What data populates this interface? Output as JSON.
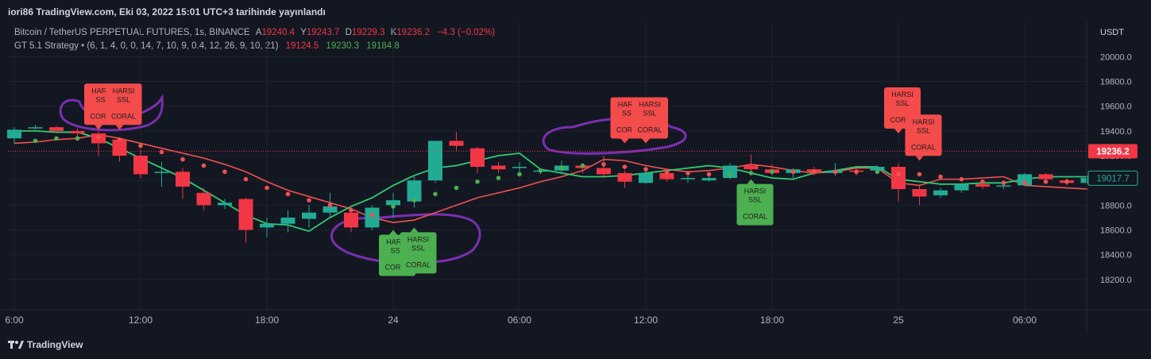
{
  "header": {
    "publisher_line": "iori86 TradingView.com, Eki 03, 2022 15:01 UTC+3 tarihinde yayınlandı"
  },
  "symbol_legend": {
    "name": "Bitcoin / TetherUS PERPETUAL FUTURES, 1s, BINANCE",
    "o_label": "A",
    "o": "19240.4",
    "h_label": "Y",
    "h": "19243.7",
    "l_label": "D",
    "l": "19229.3",
    "c_label": "K",
    "c": "19236.2",
    "change": "−4.3 (−0.02%)"
  },
  "indicator_legend": {
    "name": "GT 5.1 Strategy",
    "params": "(6, 1, 4, 0, 0, 14, 7, 10, 9, 0.4, 12, 26, 9, 10, 21)",
    "v1": "19124.5",
    "v2": "19230.3",
    "v3": "19184.8"
  },
  "footer": {
    "brand": "TradingView",
    "logo_icon": "tradingview-logo-icon"
  },
  "colors": {
    "up": "#22ab94",
    "down": "#f23645",
    "bg": "#131722",
    "grid": "#1e222d",
    "fast_line": "#2ecc71",
    "slow_line": "#f0524f",
    "annotation": "#7b2fb0",
    "sell_label": "#f44b4b",
    "buy_label": "#4caf50"
  },
  "chart_data": {
    "type": "candlestick",
    "currency": "USDT",
    "ylim": [
      18000,
      20150
    ],
    "y_ticks": [
      18200,
      18400,
      18600,
      18800,
      19000,
      19200,
      19400,
      19600,
      19800,
      20000
    ],
    "y_tick_labels": [
      "18200.0",
      "18400.0",
      "18600.0",
      "18800.0",
      "19000.0",
      "19200.0",
      "19400.0",
      "19600.0",
      "19800.0",
      "20000.0"
    ],
    "x_ticks": [
      {
        "i": 0,
        "label": "6:00"
      },
      {
        "i": 6,
        "label": "12:00"
      },
      {
        "i": 12,
        "label": "18:00"
      },
      {
        "i": 18,
        "label": "24"
      },
      {
        "i": 24,
        "label": "06:00"
      },
      {
        "i": 30,
        "label": "12:00"
      },
      {
        "i": 36,
        "label": "18:00"
      },
      {
        "i": 42,
        "label": "25"
      },
      {
        "i": 48,
        "label": "06:00"
      }
    ],
    "last_price": 19236.2,
    "last_price_label": "19236.2",
    "indicator_value": 19017.7,
    "indicator_value_label": "19017.7",
    "candles": [
      [
        19340,
        19410,
        19300,
        19430
      ],
      [
        19420,
        19430,
        19410,
        19450
      ],
      [
        19430,
        19400,
        19380,
        19440
      ],
      [
        19400,
        19380,
        19320,
        19420
      ],
      [
        19380,
        19300,
        19200,
        19400
      ],
      [
        19330,
        19200,
        19150,
        19350
      ],
      [
        19200,
        19050,
        19020,
        19250
      ],
      [
        19060,
        19070,
        18950,
        19150
      ],
      [
        19070,
        18950,
        18850,
        19100
      ],
      [
        18900,
        18800,
        18760,
        18940
      ],
      [
        18800,
        18820,
        18770,
        18850
      ],
      [
        18850,
        18600,
        18500,
        18860
      ],
      [
        18620,
        18650,
        18540,
        18700
      ],
      [
        18650,
        18700,
        18580,
        18760
      ],
      [
        18690,
        18740,
        18620,
        18800
      ],
      [
        18740,
        18790,
        18700,
        18900
      ],
      [
        18740,
        18620,
        18580,
        18800
      ],
      [
        18620,
        18780,
        18600,
        18800
      ],
      [
        18800,
        18840,
        18700,
        18900
      ],
      [
        18830,
        19000,
        18780,
        19030
      ],
      [
        19000,
        19320,
        18980,
        19320
      ],
      [
        19320,
        19280,
        19240,
        19390
      ],
      [
        19260,
        19110,
        19060,
        19270
      ],
      [
        19120,
        19090,
        19060,
        19150
      ],
      [
        19100,
        19110,
        19060,
        19150
      ],
      [
        19080,
        19080,
        19050,
        19090
      ],
      [
        19080,
        19120,
        19050,
        19160
      ],
      [
        19120,
        19100,
        19060,
        19140
      ],
      [
        19100,
        19050,
        19020,
        19200
      ],
      [
        19060,
        18990,
        18940,
        19080
      ],
      [
        18980,
        19060,
        18970,
        19080
      ],
      [
        19060,
        19010,
        18990,
        19080
      ],
      [
        19010,
        19020,
        18980,
        19040
      ],
      [
        19000,
        19020,
        18990,
        19060
      ],
      [
        19020,
        19120,
        19010,
        19140
      ],
      [
        19120,
        19090,
        19070,
        19210
      ],
      [
        19090,
        19060,
        19040,
        19130
      ],
      [
        19060,
        19090,
        19020,
        19100
      ],
      [
        19090,
        19060,
        19040,
        19110
      ],
      [
        19060,
        19080,
        19040,
        19140
      ],
      [
        19080,
        19070,
        19040,
        19100
      ],
      [
        19080,
        19110,
        19060,
        19120
      ],
      [
        19110,
        18930,
        18830,
        19140
      ],
      [
        18930,
        18870,
        18800,
        18960
      ],
      [
        18880,
        18920,
        18860,
        18940
      ],
      [
        18920,
        18970,
        18900,
        18980
      ],
      [
        18970,
        18950,
        18930,
        19000
      ],
      [
        18960,
        18960,
        18930,
        19000
      ],
      [
        18960,
        19050,
        18960,
        19060
      ],
      [
        19050,
        19010,
        18990,
        19060
      ],
      [
        19000,
        18980,
        18960,
        19020
      ],
      [
        18980,
        19020,
        18970,
        19030
      ]
    ],
    "fast_line": [
      19400,
      19400,
      19390,
      19390,
      19340,
      19260,
      19180,
      19100,
      19020,
      18920,
      18820,
      18720,
      18650,
      18640,
      18590,
      18700,
      18790,
      18860,
      18960,
      19040,
      19100,
      19120,
      19160,
      19200,
      19220,
      19090,
      19060,
      19030,
      19030,
      19040,
      19060,
      19080,
      19100,
      19120,
      19100,
      19060,
      19020,
      19010,
      19060,
      19080,
      19110,
      19110,
      19010,
      18990,
      18970,
      18970,
      18980,
      18980,
      19010,
      19030,
      19030,
      19030
    ],
    "slow_line": [
      19300,
      19310,
      19330,
      19340,
      19370,
      19340,
      19300,
      19260,
      19220,
      19180,
      19130,
      19070,
      18990,
      18920,
      18870,
      18820,
      18770,
      18700,
      18660,
      18680,
      18740,
      18800,
      18860,
      18900,
      18940,
      18990,
      19030,
      19080,
      19170,
      19160,
      19120,
      19090,
      19070,
      19080,
      19100,
      19130,
      19110,
      19080,
      19060,
      19070,
      19100,
      19100,
      18980,
      18960,
      19010,
      19010,
      19020,
      19030,
      18960,
      18950,
      18940,
      18930
    ],
    "dots": [
      {
        "i": 1,
        "v": 19320,
        "c": "g"
      },
      {
        "i": 2,
        "v": 19340,
        "c": "g"
      },
      {
        "i": 3,
        "v": 19340,
        "c": "g"
      },
      {
        "i": 4,
        "v": 19350,
        "c": "r"
      },
      {
        "i": 5,
        "v": 19330,
        "c": "r"
      },
      {
        "i": 6,
        "v": 19280,
        "c": "r"
      },
      {
        "i": 7,
        "v": 19230,
        "c": "r"
      },
      {
        "i": 8,
        "v": 19170,
        "c": "r"
      },
      {
        "i": 9,
        "v": 19120,
        "c": "r"
      },
      {
        "i": 10,
        "v": 19070,
        "c": "r"
      },
      {
        "i": 11,
        "v": 19010,
        "c": "r"
      },
      {
        "i": 12,
        "v": 18940,
        "c": "r"
      },
      {
        "i": 13,
        "v": 18890,
        "c": "r"
      },
      {
        "i": 14,
        "v": 18840,
        "c": "r"
      },
      {
        "i": 15,
        "v": 18800,
        "c": "r"
      },
      {
        "i": 16,
        "v": 18760,
        "c": "r"
      },
      {
        "i": 17,
        "v": 18720,
        "c": "r"
      },
      {
        "i": 18,
        "v": 18790,
        "c": "g"
      },
      {
        "i": 19,
        "v": 18840,
        "c": "g"
      },
      {
        "i": 20,
        "v": 18890,
        "c": "g"
      },
      {
        "i": 21,
        "v": 18940,
        "c": "g"
      },
      {
        "i": 22,
        "v": 18990,
        "c": "g"
      },
      {
        "i": 23,
        "v": 19020,
        "c": "g"
      },
      {
        "i": 24,
        "v": 19050,
        "c": "g"
      },
      {
        "i": 25,
        "v": 19080,
        "c": "g"
      },
      {
        "i": 26,
        "v": 19100,
        "c": "g"
      },
      {
        "i": 27,
        "v": 19120,
        "c": "g"
      },
      {
        "i": 28,
        "v": 19130,
        "c": "r"
      },
      {
        "i": 29,
        "v": 19110,
        "c": "r"
      },
      {
        "i": 30,
        "v": 19090,
        "c": "r"
      },
      {
        "i": 31,
        "v": 19070,
        "c": "r"
      },
      {
        "i": 32,
        "v": 19060,
        "c": "r"
      },
      {
        "i": 33,
        "v": 19050,
        "c": "r"
      },
      {
        "i": 34,
        "v": 19050,
        "c": "g"
      },
      {
        "i": 35,
        "v": 19060,
        "c": "g"
      },
      {
        "i": 36,
        "v": 19070,
        "c": "g"
      },
      {
        "i": 37,
        "v": 19070,
        "c": "r"
      },
      {
        "i": 38,
        "v": 19070,
        "c": "r"
      },
      {
        "i": 39,
        "v": 19070,
        "c": "r"
      },
      {
        "i": 40,
        "v": 19070,
        "c": "r"
      },
      {
        "i": 41,
        "v": 19070,
        "c": "g"
      },
      {
        "i": 42,
        "v": 19050,
        "c": "r"
      },
      {
        "i": 43,
        "v": 19050,
        "c": "r"
      },
      {
        "i": 44,
        "v": 19030,
        "c": "r"
      },
      {
        "i": 45,
        "v": 19010,
        "c": "r"
      },
      {
        "i": 46,
        "v": 18990,
        "c": "r"
      },
      {
        "i": 47,
        "v": 18980,
        "c": "r"
      },
      {
        "i": 48,
        "v": 18980,
        "c": "r"
      },
      {
        "i": 49,
        "v": 18990,
        "c": "r"
      },
      {
        "i": 50,
        "v": 18990,
        "c": "r"
      }
    ],
    "signals": [
      {
        "type": "sell",
        "i": 4,
        "v": 19410,
        "l1": "HARSI",
        "l2": "SSL",
        "l3": "CORAL"
      },
      {
        "type": "sell",
        "i": 5,
        "v": 19410,
        "l1": "HARSI",
        "l2": "SSL",
        "l3": "CORAL"
      },
      {
        "type": "buy",
        "i": 18,
        "v": 18600,
        "l1": "HARSI",
        "l2": "SSL",
        "l3": "CORAL"
      },
      {
        "type": "buy",
        "i": 19,
        "v": 18620,
        "l1": "HARSI",
        "l2": "SSL",
        "l3": "CORAL"
      },
      {
        "type": "sell",
        "i": 29,
        "v": 19300,
        "l1": "HARSI",
        "l2": "SSL",
        "l3": "CORAL"
      },
      {
        "type": "sell",
        "i": 30,
        "v": 19300,
        "l1": "HARSI",
        "l2": "SSL",
        "l3": "CORAL"
      },
      {
        "type": "buy",
        "i": 35,
        "v": 19010,
        "l1": "HARSI",
        "l2": "SSL",
        "l3": "CORAL"
      },
      {
        "type": "sell",
        "i": 42,
        "v": 19380,
        "l1": "HARSI",
        "l2": "SSL",
        "l3": "CORAL"
      },
      {
        "type": "sell",
        "i": 43,
        "v": 19160,
        "l1": "HARSI",
        "l2": "SSL",
        "l3": "CORAL"
      }
    ]
  }
}
